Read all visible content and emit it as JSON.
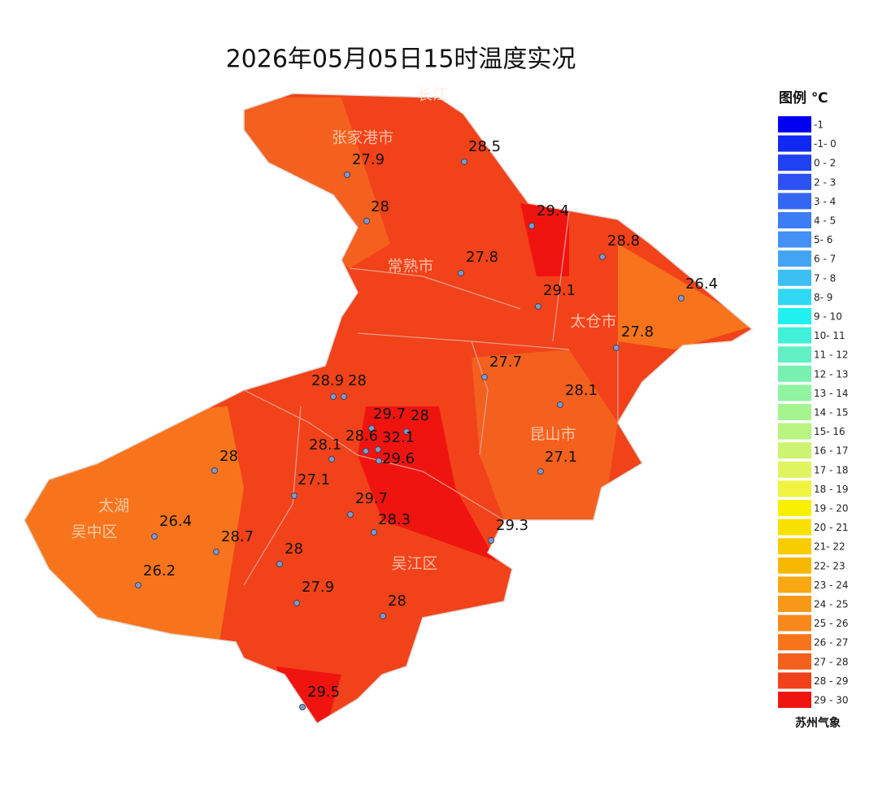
{
  "title": "2026年05月05日15时温度实况",
  "legend": {
    "title": "图例 ℃",
    "items": [
      {
        "label": "-1",
        "color": "#0000f0"
      },
      {
        "label": "-1- 0",
        "color": "#1028f2"
      },
      {
        "label": "0 - 2",
        "color": "#2040f4"
      },
      {
        "label": "2 - 3",
        "color": "#2c52f4"
      },
      {
        "label": "3 - 4",
        "color": "#3466f4"
      },
      {
        "label": "4 - 5",
        "color": "#3c7cf4"
      },
      {
        "label": "5- 6",
        "color": "#4490f4"
      },
      {
        "label": "6 - 7",
        "color": "#44a4f4"
      },
      {
        "label": "7 - 8",
        "color": "#3cc0f4"
      },
      {
        "label": "8- 9",
        "color": "#30d8f4"
      },
      {
        "label": "9 - 10",
        "color": "#20f0f0"
      },
      {
        "label": "10- 11",
        "color": "#40f0d8"
      },
      {
        "label": "11 - 12",
        "color": "#60f0c4"
      },
      {
        "label": "12 - 13",
        "color": "#78f0b0"
      },
      {
        "label": "13 - 14",
        "color": "#90f4a0"
      },
      {
        "label": "14 - 15",
        "color": "#a4f490"
      },
      {
        "label": "15- 16",
        "color": "#b8f480"
      },
      {
        "label": "16 - 17",
        "color": "#ccf470"
      },
      {
        "label": "17 - 18",
        "color": "#e0f460"
      },
      {
        "label": "18 - 19",
        "color": "#f0f440"
      },
      {
        "label": "19 - 20",
        "color": "#f8f000"
      },
      {
        "label": "20 - 21",
        "color": "#f8e000"
      },
      {
        "label": "21- 22",
        "color": "#f8cc00"
      },
      {
        "label": "22- 23",
        "color": "#f8b800"
      },
      {
        "label": "23 - 24",
        "color": "#f8a810"
      },
      {
        "label": "24 - 25",
        "color": "#f89818"
      },
      {
        "label": "25 - 26",
        "color": "#f8881c"
      },
      {
        "label": "26 - 27",
        "color": "#f8741c"
      },
      {
        "label": "27 - 28",
        "color": "#f4601e"
      },
      {
        "label": "28 - 29",
        "color": "#f2421a"
      },
      {
        "label": "29 - 30",
        "color": "#f01410"
      }
    ]
  },
  "places": [
    "长江",
    "张家港市",
    "常熟市",
    "太仓市",
    "昆山市",
    "太湖",
    "吴中区",
    "吴江区"
  ],
  "stations": [
    "27.9",
    "28.5",
    "28",
    "29.4",
    "28.8",
    "27.8",
    "26.4",
    "29.1",
    "27.8",
    "27.7",
    "28.9",
    "28",
    "28.1",
    "29.7",
    "28",
    "28.6",
    "32.1",
    "28.1",
    "29.6",
    "28",
    "27.1",
    "27.1",
    "29.7",
    "28.3",
    "29.3",
    "26.4",
    "28.7",
    "28",
    "26.2",
    "27.9",
    "28",
    "29.5"
  ],
  "source": "苏州气象"
}
